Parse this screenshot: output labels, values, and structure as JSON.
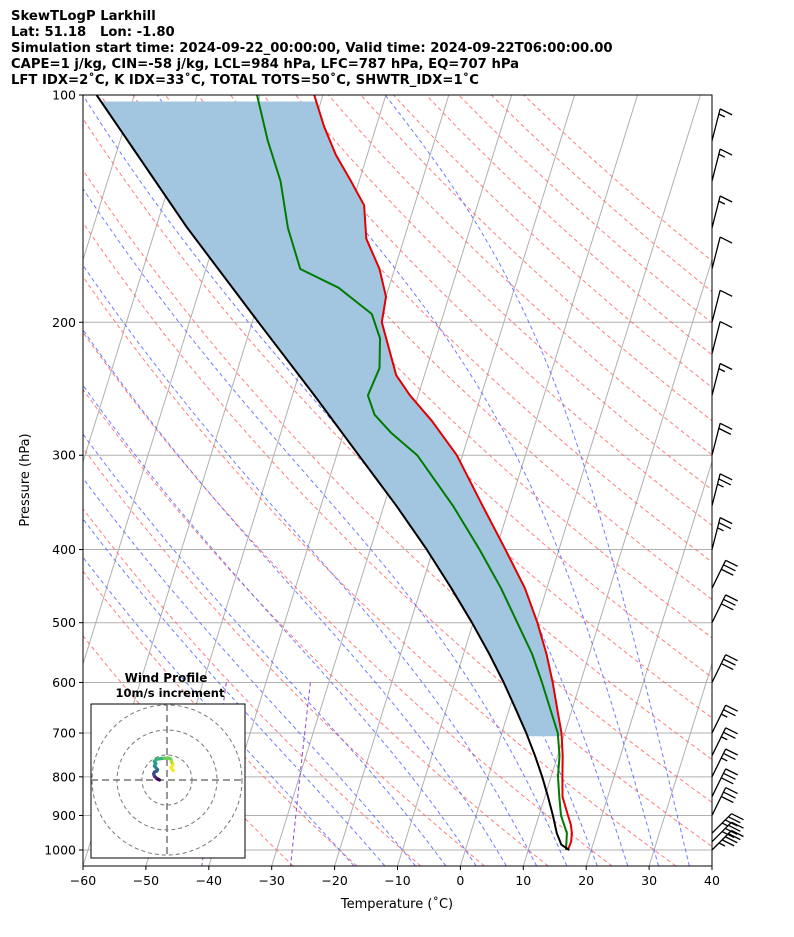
{
  "header": {
    "line1": "SkewTLogP Larkhill",
    "line2": "Lat: 51.18   Lon: -1.80",
    "line3": "Simulation start time: 2024-09-22_00:00:00, Valid time: 2024-09-22T06:00:00.00",
    "line4": "CAPE=1 j/kg, CIN=-58 j/kg, LCL=984 hPa, LFC=787 hPa, EQ=707 hPa",
    "line5": "LFT IDX=2˚C, K IDX=33˚C, TOTAL TOTS=50˚C, SHWTR_IDX=1˚C"
  },
  "chart_data": [
    {
      "type": "line",
      "subtype": "skew-t log-p",
      "xlabel": "Temperature (˚C)",
      "ylabel": "Pressure (hPa)",
      "xlim": [
        -60,
        40
      ],
      "ylim": [
        1050,
        100
      ],
      "y_scale": "log",
      "x_ticks": [
        "−60",
        "−50",
        "−40",
        "−30",
        "−20",
        "−10",
        "0",
        "10",
        "20",
        "30",
        "40"
      ],
      "y_ticks": [
        "100",
        "200",
        "300",
        "400",
        "500",
        "600",
        "700",
        "800",
        "900",
        "1000"
      ],
      "grid": true,
      "colors": {
        "temperature": "#e00000",
        "dewpoint": "#007a00",
        "parcel": "#000000",
        "cape_fill": "#a3c6e0",
        "dry_adiabat": "#ff6666",
        "moist_adiabat": "#5566ff",
        "mixing_ratio": "#9944cc",
        "isotherm": "#b0b0b0"
      },
      "series": [
        {
          "role": "temperature",
          "pressure": [
            1000,
            975,
            950,
            925,
            900,
            850,
            800,
            750,
            700,
            650,
            600,
            550,
            500,
            450,
            400,
            350,
            300,
            270,
            250,
            235,
            200,
            185,
            170,
            155,
            140,
            130,
            120,
            110,
            100
          ],
          "temperature": [
            16.3,
            16.4,
            16.1,
            15.5,
            14.6,
            12.8,
            11.8,
            10.8,
            9.5,
            7.6,
            5.6,
            3.2,
            0.2,
            -3.5,
            -8.5,
            -14.3,
            -20.9,
            -26.6,
            -31.3,
            -34.5,
            -39.4,
            -40.0,
            -42.4,
            -46.0,
            -48.0,
            -51.3,
            -55.0,
            -58.3,
            -61.4
          ]
        },
        {
          "role": "dewpoint",
          "pressure": [
            1000,
            950,
            900,
            850,
            800,
            750,
            700,
            650,
            600,
            550,
            500,
            450,
            400,
            350,
            300,
            280,
            265,
            250,
            230,
            210,
            195,
            180,
            170,
            150,
            130,
            115,
            100
          ],
          "temperature": [
            16.0,
            15.3,
            13.5,
            12.3,
            11.1,
            10.3,
            8.9,
            6.5,
            3.9,
            0.9,
            -3.0,
            -7.3,
            -12.6,
            -19.0,
            -27.2,
            -32.5,
            -36.0,
            -38.0,
            -37.5,
            -38.9,
            -41.4,
            -48.0,
            -55.0,
            -59.0,
            -62.5,
            -66.5,
            -70.5
          ]
        },
        {
          "role": "parcel",
          "pressure": [
            1000,
            984,
            950,
            900,
            850,
            800,
            750,
            700,
            650,
            600,
            550,
            500,
            450,
            400,
            350,
            300,
            250,
            200,
            150,
            100
          ],
          "temperature": [
            16.5,
            15.0,
            13.7,
            12.2,
            10.5,
            8.6,
            6.4,
            3.9,
            1.0,
            -2.2,
            -5.9,
            -10.2,
            -15.2,
            -21.0,
            -28.0,
            -36.5,
            -46.5,
            -59.0,
            -75.0,
            -96.0
          ]
        }
      ],
      "shaded_region": {
        "label": "CAPE",
        "from_pressure": 707,
        "to_pressure": 100
      },
      "wind_barbs": [
        {
          "pressure": 1000,
          "speed_kt": 45
        },
        {
          "pressure": 975,
          "speed_kt": 40
        },
        {
          "pressure": 950,
          "speed_kt": 35
        },
        {
          "pressure": 900,
          "speed_kt": 30
        },
        {
          "pressure": 850,
          "speed_kt": 30
        },
        {
          "pressure": 800,
          "speed_kt": 25
        },
        {
          "pressure": 750,
          "speed_kt": 25
        },
        {
          "pressure": 700,
          "speed_kt": 25
        },
        {
          "pressure": 600,
          "speed_kt": 30
        },
        {
          "pressure": 500,
          "speed_kt": 30
        },
        {
          "pressure": 450,
          "speed_kt": 30
        },
        {
          "pressure": 400,
          "speed_kt": 25
        },
        {
          "pressure": 350,
          "speed_kt": 25
        },
        {
          "pressure": 300,
          "speed_kt": 20
        },
        {
          "pressure": 250,
          "speed_kt": 15
        },
        {
          "pressure": 220,
          "speed_kt": 10
        },
        {
          "pressure": 200,
          "speed_kt": 10
        },
        {
          "pressure": 170,
          "speed_kt": 10
        },
        {
          "pressure": 150,
          "speed_kt": 15
        },
        {
          "pressure": 130,
          "speed_kt": 15
        },
        {
          "pressure": 115,
          "speed_kt": 15
        }
      ]
    },
    {
      "type": "line",
      "subtype": "hodograph",
      "title": "Wind Profile",
      "subtitle": "10m/s increment",
      "rings": [
        10,
        20,
        30
      ],
      "colormap": "viridis",
      "u": [
        -3,
        -3.5,
        -4,
        -4.5,
        -5,
        -5.2,
        -5.3,
        -5,
        -4,
        -3.8,
        -4.5,
        -5,
        -4.8,
        -4.5,
        -5,
        -4.5,
        -3,
        -1,
        0.5,
        1.5,
        1.8,
        2,
        2.4,
        1.6,
        2.5
      ],
      "v": [
        0,
        0.3,
        0.5,
        1,
        1.5,
        2,
        2.5,
        3.2,
        3.6,
        4.2,
        5,
        5.6,
        6.1,
        6.6,
        7.4,
        8.1,
        8.5,
        8.7,
        8.8,
        8.4,
        7.6,
        6.8,
        5.9,
        4.9,
        3.8
      ]
    }
  ]
}
